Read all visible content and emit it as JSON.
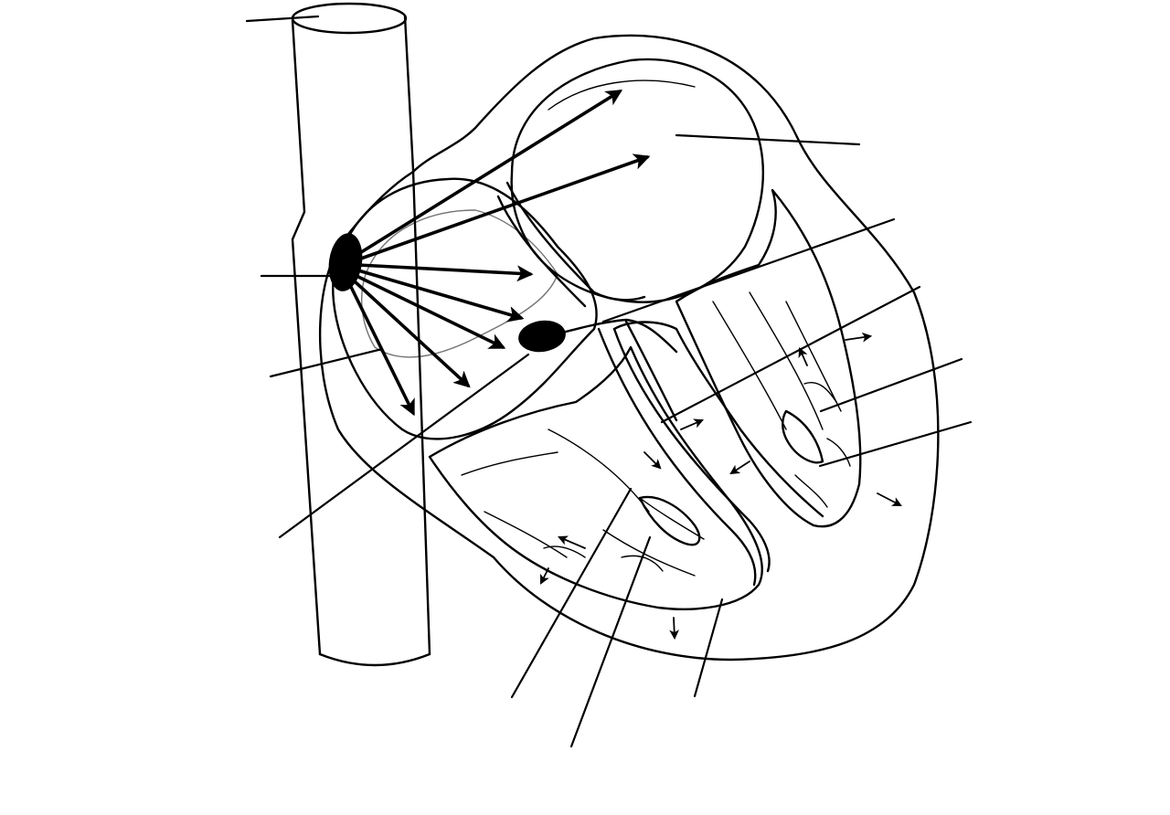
{
  "diagram": {
    "labels": [],
    "colors": {
      "ink": "#000000",
      "paper": "#ffffff"
    }
  }
}
